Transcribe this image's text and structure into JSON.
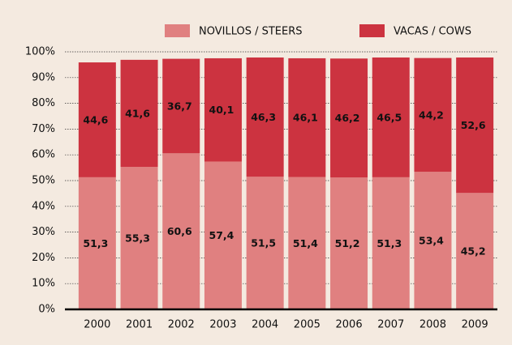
{
  "chart_data": {
    "type": "stacked_bar",
    "categories": [
      "2000",
      "2001",
      "2002",
      "2003",
      "2004",
      "2005",
      "2006",
      "2007",
      "2008",
      "2009"
    ],
    "series": [
      {
        "name": "NOVILLOS / STEERS",
        "color": "#e08080",
        "values": [
          51.3,
          55.3,
          60.6,
          57.4,
          51.5,
          51.4,
          51.2,
          51.3,
          53.4,
          45.2
        ],
        "value_labels": [
          "51,3",
          "55,3",
          "60,6",
          "57,4",
          "51,5",
          "51,4",
          "51,2",
          "51,3",
          "53,4",
          "45,2"
        ]
      },
      {
        "name": "VACAS / COWS",
        "color": "#cc3340",
        "values": [
          44.6,
          41.6,
          36.7,
          40.1,
          46.3,
          46.1,
          46.2,
          46.5,
          44.2,
          52.6
        ],
        "value_labels": [
          "44,6",
          "41,6",
          "36,7",
          "40,1",
          "46,3",
          "46,1",
          "46,2",
          "46,5",
          "44,2",
          "52,6"
        ]
      }
    ],
    "ylim": [
      0,
      100
    ],
    "yticks": [
      {
        "value": 0,
        "label": "0%"
      },
      {
        "value": 10,
        "label": "10%"
      },
      {
        "value": 20,
        "label": "20%"
      },
      {
        "value": 30,
        "label": "30%"
      },
      {
        "value": 40,
        "label": "40%"
      },
      {
        "value": 50,
        "label": "50%"
      },
      {
        "value": 60,
        "label": "60%"
      },
      {
        "value": 70,
        "label": "70%"
      },
      {
        "value": 80,
        "label": "80%"
      },
      {
        "value": 90,
        "label": "90%"
      },
      {
        "value": 100,
        "label": "100%"
      }
    ],
    "grid": true
  }
}
